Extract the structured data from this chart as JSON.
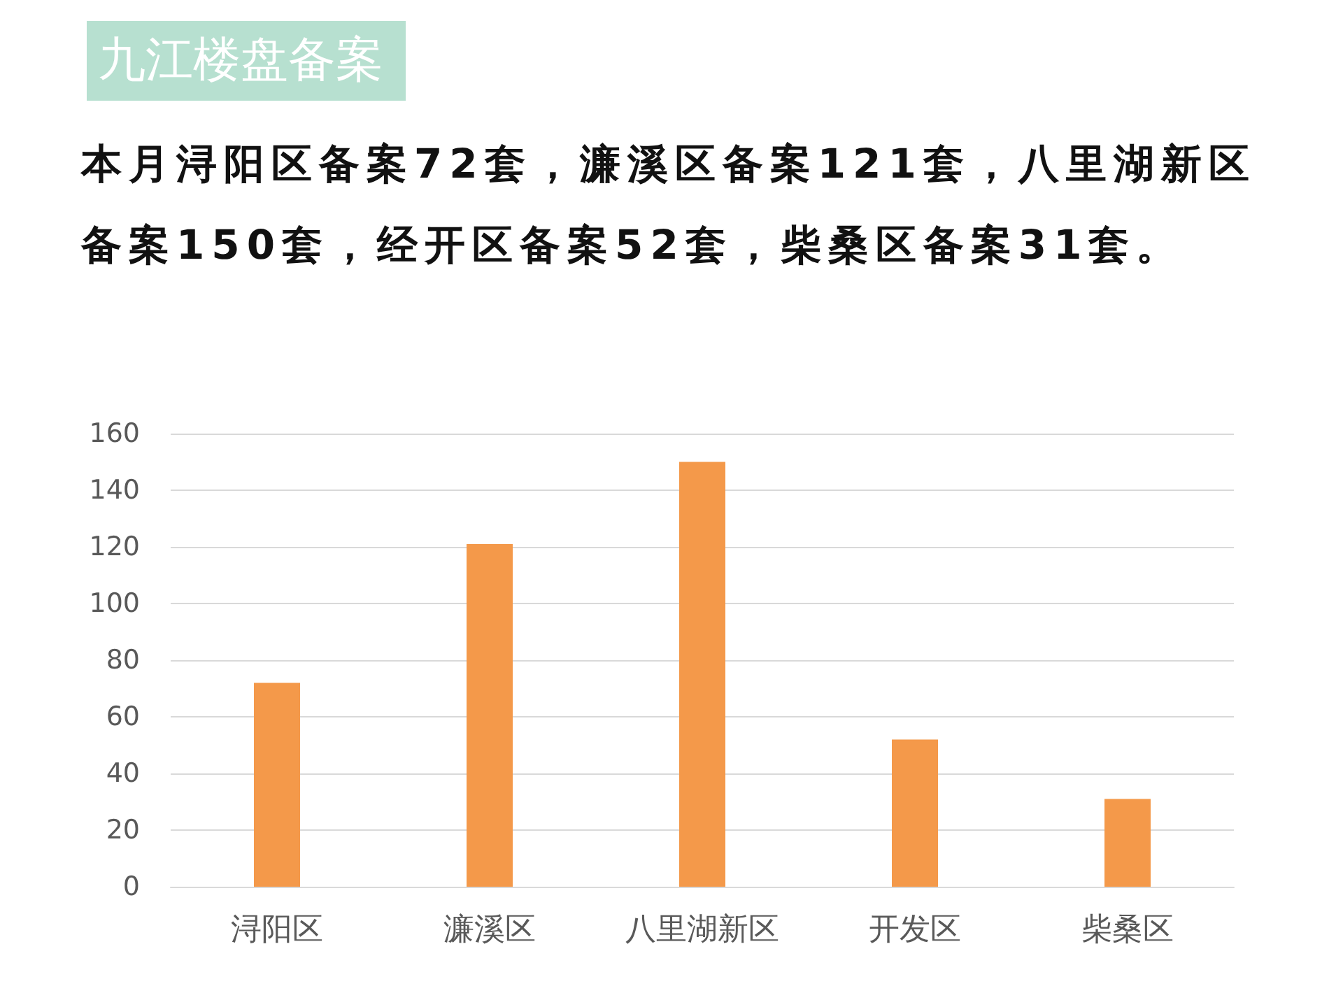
{
  "chart_data": {
    "type": "bar",
    "title": "九江楼盘备案",
    "subtitle": "本月浔阳区备案72套，濂溪区备案121套，八里湖新区备案150套，经开区备案52套，柴桑区备案31套。",
    "categories": [
      "浔阳区",
      "濂溪区",
      "八里湖新区",
      "开发区",
      "柴桑区"
    ],
    "values": [
      72,
      121,
      150,
      52,
      31
    ],
    "color": "#f4994a",
    "ylim": [
      0,
      160
    ],
    "yticks": [
      0,
      20,
      40,
      60,
      80,
      100,
      120,
      140,
      160
    ],
    "grid": "y"
  }
}
